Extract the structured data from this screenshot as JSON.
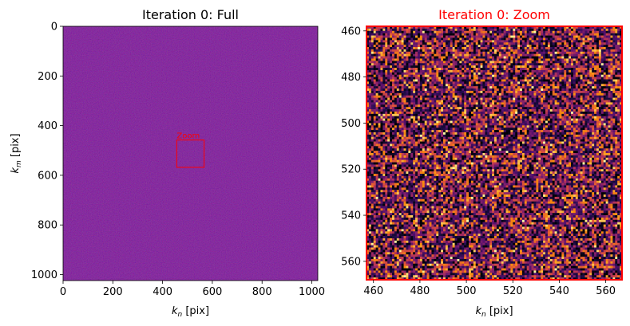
{
  "chart_data": [
    {
      "type": "heatmap",
      "title": "Iteration 0: Full",
      "xlabel_base": "k",
      "xlabel_sub": "n",
      "xlabel_suffix": " [pix]",
      "ylabel_base": "k",
      "ylabel_sub": "m",
      "ylabel_suffix": " [pix]",
      "xlim": [
        0,
        1024
      ],
      "ylim": [
        1024,
        0
      ],
      "xticks": [
        0,
        200,
        400,
        600,
        800,
        1000
      ],
      "yticks": [
        0,
        200,
        400,
        600,
        800,
        1000
      ],
      "colormap": "inferno",
      "appearance": "uniform low-amplitude noise, dark purple",
      "annotation": {
        "text": "Zoom",
        "x_range": [
          457,
          567
        ],
        "y_range": [
          458,
          568
        ],
        "color": "#ff0000"
      }
    },
    {
      "type": "heatmap",
      "title": "Iteration 0: Zoom",
      "title_color": "#ff0000",
      "xlabel_base": "k",
      "xlabel_sub": "n",
      "xlabel_suffix": " [pix]",
      "xlim": [
        457,
        567
      ],
      "ylim": [
        568,
        458
      ],
      "xticks": [
        460,
        480,
        500,
        520,
        540,
        560
      ],
      "yticks": [
        460,
        480,
        500,
        520,
        540,
        560
      ],
      "colormap": "inferno",
      "frame_color": "#ff0000",
      "appearance": "pixel-level random noise"
    }
  ]
}
